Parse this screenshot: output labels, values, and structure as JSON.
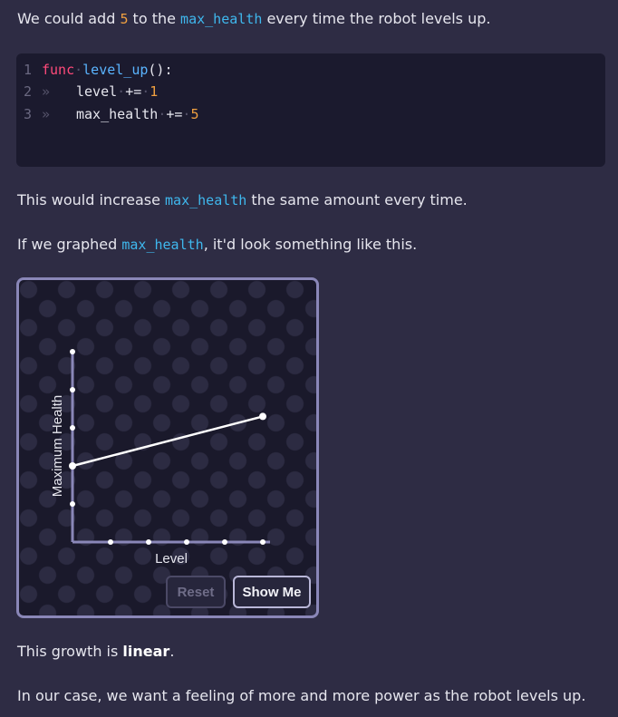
{
  "intro": {
    "t1": "We could add ",
    "n1": "5",
    "t2": " to the ",
    "c1": "max_health",
    "t3": " every time the robot levels up."
  },
  "code": {
    "lines": [
      {
        "num": "1",
        "keyword": "func",
        "name": "level_up",
        "rest": "():"
      },
      {
        "num": "2",
        "text": "level",
        "op": "+=",
        "value": "1"
      },
      {
        "num": "3",
        "text": "max_health",
        "op": "+=",
        "value": "5"
      }
    ],
    "tab_glyph": "»"
  },
  "para2": {
    "t1": "This would increase ",
    "c1": "max_health",
    "t2": " the same amount every time."
  },
  "para3": {
    "t1": "If we graphed ",
    "c1": "max_health",
    "t2": ", it'd look something like this."
  },
  "graph": {
    "ylabel": "Maximum Health",
    "xlabel": "Level",
    "reset_label": "Reset",
    "show_me_label": "Show Me"
  },
  "chart_data": {
    "type": "line",
    "xlabel": "Level",
    "ylabel": "Maximum Health",
    "x_ticks": 5,
    "y_ticks": 5,
    "series": [
      {
        "points": [
          [
            0,
            2
          ],
          [
            5,
            3.3
          ]
        ]
      }
    ],
    "xlim": [
      0,
      5
    ],
    "ylim": [
      0,
      5
    ]
  },
  "para4": {
    "t1": "This growth is ",
    "b1": "linear",
    "t2": "."
  },
  "para5": {
    "t1": "In our case, we want a feeling of more and more power as the robot levels up."
  },
  "colors": {
    "accent_code": "#3fb8ee",
    "number": "#f0a040",
    "keyword": "#ff4a7a",
    "graph_border": "#8a87b8"
  }
}
